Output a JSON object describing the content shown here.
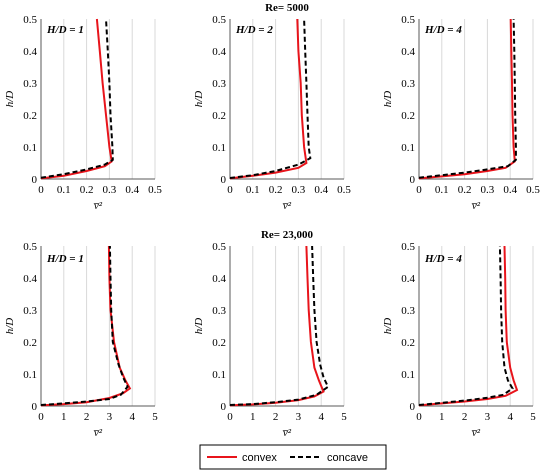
{
  "colors": {
    "convex": "#e8141b",
    "concave": "#000000",
    "grid": "#d9d9d9",
    "axis": "#595959"
  },
  "row_titles": [
    "Re= 5000",
    "Re= 23,000"
  ],
  "ylabel": "h/D",
  "xlabel": "v̅²",
  "legend": {
    "convex": "convex",
    "concave": "concave"
  },
  "chart_data": [
    {
      "type": "line",
      "title": "Re= 5000",
      "annotation": "H/D = 1",
      "xlim": [
        0,
        0.5
      ],
      "ylim": [
        0,
        0.5
      ],
      "xticks": [
        "0",
        "0.1",
        "0.2",
        "0.3",
        "0.4",
        "0.5"
      ],
      "yticks": [
        "0",
        "0.1",
        "0.2",
        "0.3",
        "0.4",
        "0.5"
      ],
      "series": [
        {
          "name": "convex",
          "points": [
            [
              0,
              0.002
            ],
            [
              0.1,
              0.01
            ],
            [
              0.2,
              0.025
            ],
            [
              0.28,
              0.04
            ],
            [
              0.31,
              0.055
            ],
            [
              0.3,
              0.1
            ],
            [
              0.285,
              0.2
            ],
            [
              0.27,
              0.3
            ],
            [
              0.258,
              0.4
            ],
            [
              0.245,
              0.5
            ]
          ]
        },
        {
          "name": "concave",
          "points": [
            [
              0,
              0.004
            ],
            [
              0.1,
              0.015
            ],
            [
              0.2,
              0.03
            ],
            [
              0.28,
              0.045
            ],
            [
              0.315,
              0.06
            ],
            [
              0.313,
              0.1
            ],
            [
              0.305,
              0.2
            ],
            [
              0.3,
              0.3
            ],
            [
              0.293,
              0.4
            ],
            [
              0.285,
              0.5
            ]
          ]
        }
      ]
    },
    {
      "type": "line",
      "title": "Re= 5000",
      "annotation": "H/D = 2",
      "xlim": [
        0,
        0.5
      ],
      "ylim": [
        0,
        0.5
      ],
      "xticks": [
        "0",
        "0.1",
        "0.2",
        "0.3",
        "0.4",
        "0.5"
      ],
      "yticks": [
        "0",
        "0.1",
        "0.2",
        "0.3",
        "0.4",
        "0.5"
      ],
      "series": [
        {
          "name": "convex",
          "points": [
            [
              0,
              0.002
            ],
            [
              0.1,
              0.01
            ],
            [
              0.2,
              0.02
            ],
            [
              0.3,
              0.035
            ],
            [
              0.335,
              0.05
            ],
            [
              0.325,
              0.1
            ],
            [
              0.315,
              0.2
            ],
            [
              0.31,
              0.3
            ],
            [
              0.3,
              0.4
            ],
            [
              0.295,
              0.5
            ]
          ]
        },
        {
          "name": "concave",
          "points": [
            [
              0,
              0.003
            ],
            [
              0.1,
              0.012
            ],
            [
              0.2,
              0.025
            ],
            [
              0.3,
              0.045
            ],
            [
              0.352,
              0.065
            ],
            [
              0.345,
              0.1
            ],
            [
              0.34,
              0.2
            ],
            [
              0.335,
              0.3
            ],
            [
              0.33,
              0.4
            ],
            [
              0.325,
              0.5
            ]
          ]
        }
      ]
    },
    {
      "type": "line",
      "title": "Re= 5000",
      "annotation": "H/D = 4",
      "xlim": [
        0,
        0.5
      ],
      "ylim": [
        0,
        0.5
      ],
      "xticks": [
        "0",
        "0.1",
        "0.2",
        "0.3",
        "0.4",
        "0.5"
      ],
      "yticks": [
        "0",
        "0.1",
        "0.2",
        "0.3",
        "0.4",
        "0.5"
      ],
      "series": [
        {
          "name": "convex",
          "points": [
            [
              0,
              0.002
            ],
            [
              0.1,
              0.008
            ],
            [
              0.2,
              0.015
            ],
            [
              0.3,
              0.025
            ],
            [
              0.38,
              0.035
            ],
            [
              0.42,
              0.055
            ],
            [
              0.415,
              0.1
            ],
            [
              0.41,
              0.2
            ],
            [
              0.408,
              0.3
            ],
            [
              0.405,
              0.4
            ],
            [
              0.402,
              0.5
            ]
          ]
        },
        {
          "name": "concave",
          "points": [
            [
              0,
              0.004
            ],
            [
              0.1,
              0.012
            ],
            [
              0.2,
              0.02
            ],
            [
              0.3,
              0.03
            ],
            [
              0.39,
              0.04
            ],
            [
              0.425,
              0.06
            ],
            [
              0.425,
              0.1
            ],
            [
              0.422,
              0.2
            ],
            [
              0.42,
              0.3
            ],
            [
              0.418,
              0.4
            ],
            [
              0.415,
              0.5
            ]
          ]
        }
      ]
    },
    {
      "type": "line",
      "title": "Re= 23,000",
      "annotation": "H/D = 1",
      "xlim": [
        0,
        5
      ],
      "ylim": [
        0,
        0.5
      ],
      "xticks": [
        "0",
        "1",
        "2",
        "3",
        "4",
        "5"
      ],
      "yticks": [
        "0",
        "0.1",
        "0.2",
        "0.3",
        "0.4",
        "0.5"
      ],
      "series": [
        {
          "name": "convex",
          "points": [
            [
              0,
              0.002
            ],
            [
              1,
              0.006
            ],
            [
              2,
              0.012
            ],
            [
              3,
              0.025
            ],
            [
              3.6,
              0.04
            ],
            [
              3.9,
              0.055
            ],
            [
              3.7,
              0.08
            ],
            [
              3.45,
              0.12
            ],
            [
              3.2,
              0.2
            ],
            [
              3.05,
              0.3
            ],
            [
              3,
              0.4
            ],
            [
              2.98,
              0.5
            ]
          ]
        },
        {
          "name": "concave",
          "points": [
            [
              0,
              0.003
            ],
            [
              1,
              0.008
            ],
            [
              2,
              0.014
            ],
            [
              3,
              0.022
            ],
            [
              3.5,
              0.035
            ],
            [
              3.8,
              0.06
            ],
            [
              3.6,
              0.09
            ],
            [
              3.4,
              0.13
            ],
            [
              3.15,
              0.2
            ],
            [
              3.08,
              0.3
            ],
            [
              3.05,
              0.4
            ],
            [
              3.02,
              0.5
            ]
          ]
        }
      ]
    },
    {
      "type": "line",
      "title": "Re= 23,000",
      "annotation": "",
      "xlim": [
        0,
        5
      ],
      "ylim": [
        0,
        0.5
      ],
      "xticks": [
        "0",
        "1",
        "2",
        "3",
        "4",
        "5"
      ],
      "yticks": [
        "0",
        "0.1",
        "0.2",
        "0.3",
        "0.4",
        "0.5"
      ],
      "series": [
        {
          "name": "convex",
          "points": [
            [
              0,
              0.002
            ],
            [
              1,
              0.005
            ],
            [
              2,
              0.01
            ],
            [
              3,
              0.018
            ],
            [
              3.7,
              0.03
            ],
            [
              4.1,
              0.045
            ],
            [
              3.9,
              0.08
            ],
            [
              3.7,
              0.12
            ],
            [
              3.55,
              0.2
            ],
            [
              3.45,
              0.3
            ],
            [
              3.4,
              0.4
            ],
            [
              3.35,
              0.5
            ]
          ]
        },
        {
          "name": "concave",
          "points": [
            [
              0,
              0.003
            ],
            [
              1,
              0.006
            ],
            [
              2,
              0.012
            ],
            [
              3,
              0.02
            ],
            [
              3.8,
              0.035
            ],
            [
              4.3,
              0.06
            ],
            [
              4.1,
              0.09
            ],
            [
              3.95,
              0.13
            ],
            [
              3.8,
              0.2
            ],
            [
              3.7,
              0.3
            ],
            [
              3.65,
              0.4
            ],
            [
              3.6,
              0.5
            ]
          ]
        }
      ]
    },
    {
      "type": "line",
      "title": "Re= 23,000",
      "annotation": "H/D = 4",
      "xlim": [
        0,
        5
      ],
      "ylim": [
        0,
        0.5
      ],
      "xticks": [
        "0",
        "1",
        "2",
        "3",
        "4",
        "5"
      ],
      "yticks": [
        "0",
        "0.1",
        "0.2",
        "0.3",
        "0.4",
        "0.5"
      ],
      "series": [
        {
          "name": "convex",
          "points": [
            [
              0,
              0.002
            ],
            [
              1,
              0.008
            ],
            [
              2,
              0.014
            ],
            [
              3,
              0.022
            ],
            [
              3.8,
              0.032
            ],
            [
              4.3,
              0.05
            ],
            [
              4.15,
              0.08
            ],
            [
              4,
              0.12
            ],
            [
              3.85,
              0.2
            ],
            [
              3.8,
              0.3
            ],
            [
              3.78,
              0.4
            ],
            [
              3.75,
              0.5
            ]
          ]
        },
        {
          "name": "concave",
          "points": [
            [
              0,
              0.003
            ],
            [
              1,
              0.01
            ],
            [
              2,
              0.017
            ],
            [
              3,
              0.026
            ],
            [
              3.7,
              0.035
            ],
            [
              4.1,
              0.055
            ],
            [
              3.9,
              0.08
            ],
            [
              3.75,
              0.12
            ],
            [
              3.65,
              0.2
            ],
            [
              3.6,
              0.3
            ],
            [
              3.58,
              0.4
            ],
            [
              3.55,
              0.5
            ]
          ]
        }
      ]
    }
  ]
}
